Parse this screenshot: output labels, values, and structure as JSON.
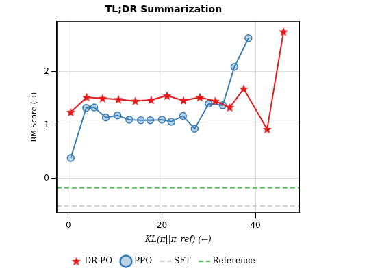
{
  "chart_data": {
    "type": "line",
    "title": "TL;DR Summarization",
    "x_label": "KL(π||π_ref) (←)",
    "y_label": "RM Score (→)",
    "xlim": [
      -2.5,
      49.5
    ],
    "xticks": [
      0,
      20,
      40
    ],
    "ylim": [
      -0.65,
      2.95
    ],
    "yticks": [
      0,
      1,
      2
    ],
    "grid": true,
    "legend": "bottom",
    "series": [
      {
        "name": "DR-PO",
        "color": "#e41a1c",
        "marker": "star",
        "line_style": "solid",
        "x": [
          0.5,
          3.9,
          7.3,
          10.7,
          14.3,
          17.7,
          21.1,
          24.6,
          28.1,
          31.4,
          34.5,
          37.5,
          42.5,
          46.0
        ],
        "values": [
          1.24,
          1.52,
          1.5,
          1.48,
          1.45,
          1.47,
          1.55,
          1.46,
          1.52,
          1.45,
          1.33,
          1.68,
          0.92,
          2.75
        ]
      },
      {
        "name": "PPO",
        "color": "#377eb8",
        "marker": "circle",
        "line_style": "solid",
        "x": [
          0.5,
          3.8,
          5.5,
          8.0,
          10.5,
          13.0,
          15.5,
          17.5,
          20.0,
          22.0,
          24.5,
          27.0,
          30.0,
          33.0,
          35.5,
          38.5
        ],
        "values": [
          0.38,
          1.32,
          1.33,
          1.14,
          1.18,
          1.1,
          1.09,
          1.09,
          1.1,
          1.06,
          1.17,
          0.93,
          1.4,
          1.37,
          2.09,
          2.63
        ]
      },
      {
        "name": "SFT",
        "color": "#d3d3d3",
        "type": "hline",
        "line_style": "dashed",
        "values": [
          -0.52
        ]
      },
      {
        "name": "Reference",
        "color": "#66bb6a",
        "type": "hline",
        "line_style": "dashed",
        "values": [
          -0.18
        ]
      }
    ]
  }
}
